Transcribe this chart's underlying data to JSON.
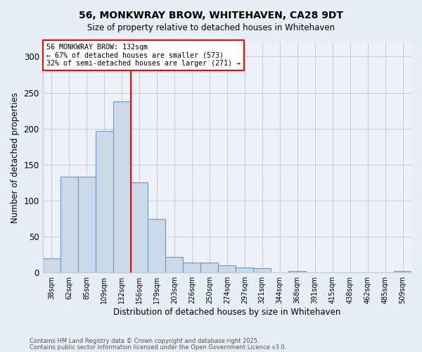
{
  "title_line1": "56, MONKWRAY BROW, WHITEHAVEN, CA28 9DT",
  "title_line2": "Size of property relative to detached houses in Whitehaven",
  "xlabel": "Distribution of detached houses by size in Whitehaven",
  "ylabel": "Number of detached properties",
  "categories": [
    "38sqm",
    "62sqm",
    "85sqm",
    "109sqm",
    "132sqm",
    "156sqm",
    "179sqm",
    "203sqm",
    "226sqm",
    "250sqm",
    "274sqm",
    "297sqm",
    "321sqm",
    "344sqm",
    "368sqm",
    "391sqm",
    "415sqm",
    "438sqm",
    "462sqm",
    "485sqm",
    "509sqm"
  ],
  "values": [
    20,
    133,
    133,
    197,
    238,
    125,
    75,
    22,
    14,
    14,
    10,
    7,
    6,
    0,
    2,
    0,
    0,
    0,
    0,
    0,
    2
  ],
  "bar_color": "#ccd9e8",
  "bar_edge_color": "#6699cc",
  "vline_color": "red",
  "vline_x_index": 4,
  "annotation_line1": "56 MONKWRAY BROW: 132sqm",
  "annotation_line2": "← 67% of detached houses are smaller (573)",
  "annotation_line3": "32% of semi-detached houses are larger (271) →",
  "ylim": [
    0,
    320
  ],
  "yticks": [
    0,
    50,
    100,
    150,
    200,
    250,
    300
  ],
  "footnote1": "Contains HM Land Registry data © Crown copyright and database right 2025.",
  "footnote2": "Contains public sector information licensed under the Open Government Licence v3.0.",
  "bg_color": "#e8eef5",
  "plot_bg_color": "#eef2f8",
  "grid_color": "#c0ccd8"
}
